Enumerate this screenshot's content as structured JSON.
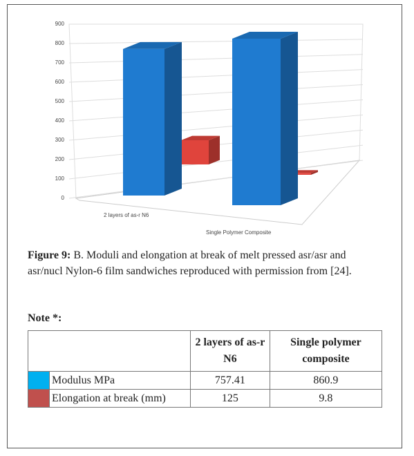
{
  "chart_data": {
    "type": "bar3d",
    "categories": [
      "2 layers of as-r N6",
      "Single Polymer Composite"
    ],
    "series": [
      {
        "color": "#1f7bd0",
        "values": [
          757.41,
          860.9
        ]
      },
      {
        "color": "#e0443c",
        "values": [
          125,
          9.8
        ]
      }
    ],
    "ylim": [
      0,
      900
    ],
    "yticks": [
      0,
      100,
      200,
      300,
      400,
      500,
      600,
      700,
      800,
      900
    ],
    "grid": true
  },
  "caption": {
    "label": "Figure 9:",
    "text": "B. Moduli and elongation at break of melt pressed asr/asr and asr/nucl Nylon-6 film sandwiches reproduced with permission from [24]."
  },
  "note": "Note *:",
  "table": {
    "columns": [
      "2 layers of as-r N6",
      "Single polymer composite"
    ],
    "rows": [
      "Modulus MPa",
      "Elongation at break (mm)"
    ]
  }
}
